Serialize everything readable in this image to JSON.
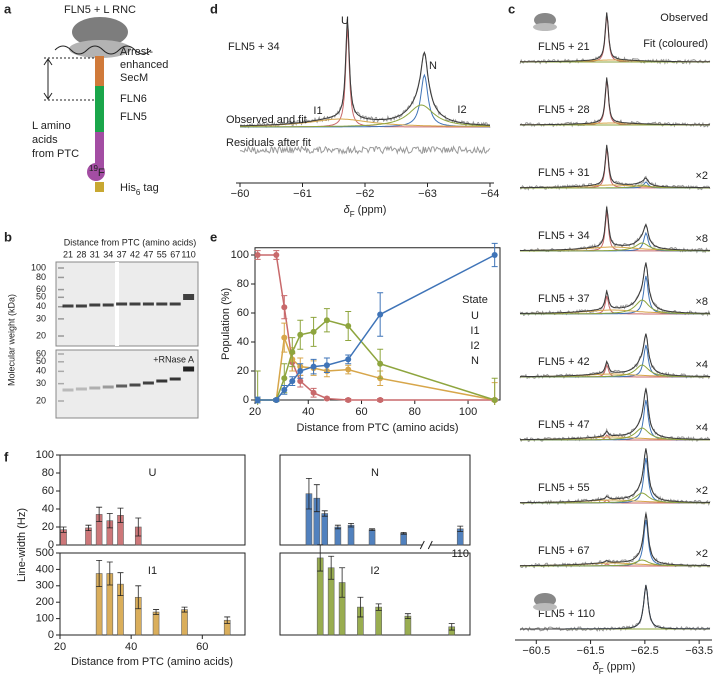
{
  "panel_labels": [
    "a",
    "b",
    "c",
    "d",
    "e",
    "f"
  ],
  "diagram": {
    "title": "FLN5 + L RNC",
    "secm": [
      "Arrest-",
      "enhanced",
      "SecM"
    ],
    "fln6": "FLN6",
    "fln5": "FLN5",
    "length": [
      "L amino",
      "acids",
      "from PTC"
    ],
    "label_19f": [
      "19",
      "F"
    ],
    "his_tag": [
      "His",
      "6",
      " tag"
    ]
  },
  "gel": {
    "title": "Distance from PTC (amino acids)",
    "lanes": [
      21,
      28,
      31,
      34,
      37,
      42,
      47,
      55,
      67,
      110
    ],
    "y_label": "Molecular weight (kDa)",
    "upper_markers": [
      100,
      80,
      60,
      50,
      40,
      30,
      20
    ],
    "lower_markers": [
      60,
      50,
      40,
      30,
      20
    ],
    "lower_label": "+RNase A"
  },
  "spectra": {
    "observed": "Observed",
    "fit": "Fit (coloured)",
    "rows": [
      {
        "label": "FLN5 + 21"
      },
      {
        "label": "FLN5 + 28"
      },
      {
        "label": "FLN5 + 31",
        "scale": "×2"
      },
      {
        "label": "FLN5 + 34",
        "scale": "×8"
      },
      {
        "label": "FLN5 + 37",
        "scale": "×8"
      },
      {
        "label": "FLN5 + 42",
        "scale": "×4"
      },
      {
        "label": "FLN5 + 47",
        "scale": "×4"
      },
      {
        "label": "FLN5 + 55",
        "scale": "×2"
      },
      {
        "label": "FLN5 + 67",
        "scale": "×2"
      },
      {
        "label": "FLN5 + 110"
      }
    ],
    "xlim": [
      -60.2,
      -63.7
    ],
    "xticks": [
      {
        "value": -60.5,
        "label": "−60.5"
      },
      {
        "value": -61.5,
        "label": "−61.5"
      },
      {
        "value": -62.5,
        "label": "−62.5"
      },
      {
        "value": -63.5,
        "label": "−63.5"
      }
    ],
    "x_label": {
      "symbol": "δ",
      "sub": "F",
      "unit": " (ppm)"
    }
  },
  "panel_d": {
    "label": "FLN5 + 34",
    "peaks": {
      "U": "U",
      "N": "N",
      "I1": "I1",
      "I2": "I2"
    },
    "observed": "Observed and fit",
    "residuals": "Residuals after fit",
    "xlim": [
      -60,
      -64
    ],
    "xticks": [
      {
        "value": -60,
        "label": "−60"
      },
      {
        "value": -61,
        "label": "−61"
      },
      {
        "value": -62,
        "label": "−62"
      },
      {
        "value": -63,
        "label": "−63"
      },
      {
        "value": -64,
        "label": "−64"
      }
    ],
    "x_label": {
      "symbol": "δ",
      "sub": "F",
      "unit": " (ppm)"
    }
  },
  "panel_f": {
    "y_label": "Line-width (Hz)",
    "x_label": "Distance from PTC (amino acids)"
  },
  "chart_data": [
    {
      "type": "line",
      "x_label": "Distance from PTC (amino acids)",
      "y_label": "Population (%)",
      "legend_title": "State",
      "legend": "right",
      "x": [
        21,
        28,
        31,
        34,
        37,
        42,
        47,
        55,
        67,
        110
      ],
      "series": [
        {
          "name": "U",
          "color": "#c8696b",
          "values": [
            100,
            100,
            64,
            26,
            13,
            5,
            1,
            0,
            0,
            0
          ],
          "errors": [
            3,
            3,
            8,
            6,
            4,
            3,
            1,
            1,
            1,
            1
          ]
        },
        {
          "name": "I1",
          "color": "#d7a64a",
          "values": [
            0,
            0,
            43,
            28,
            23,
            22,
            20,
            21,
            15,
            0
          ],
          "errors": [
            1,
            1,
            10,
            8,
            6,
            5,
            4,
            3,
            5,
            12
          ]
        },
        {
          "name": "I2",
          "color": "#8ea53e",
          "values": [
            0,
            0,
            15,
            33,
            45,
            47,
            55,
            51,
            25,
            0
          ],
          "errors": [
            20,
            1,
            10,
            10,
            10,
            10,
            8,
            10,
            10,
            15
          ]
        },
        {
          "name": "N",
          "color": "#3f74b8",
          "values": [
            0,
            0,
            7,
            13,
            20,
            23,
            24,
            28,
            59,
            100
          ],
          "errors": [
            2,
            1,
            3,
            3,
            5,
            5,
            5,
            3,
            15,
            8
          ]
        }
      ],
      "xlim": [
        20,
        112
      ],
      "ylim": [
        0,
        105
      ],
      "xticks": [
        20,
        40,
        60,
        80,
        100
      ],
      "yticks": [
        0,
        20,
        40,
        60,
        80,
        100
      ]
    },
    {
      "type": "bar",
      "title": "U",
      "color": "#c8696b",
      "x": [
        21,
        28,
        31,
        34,
        37,
        42
      ],
      "values": [
        17,
        19,
        34,
        27,
        33,
        20
      ],
      "errors": [
        3,
        3,
        8,
        8,
        8,
        10
      ],
      "xlim": [
        20,
        72
      ],
      "ylim": [
        0,
        100
      ],
      "yticks": [
        0,
        20,
        40,
        60,
        80,
        100
      ]
    },
    {
      "type": "bar",
      "title": "N",
      "color": "#3f74b8",
      "x": [
        31,
        34,
        37,
        42,
        47,
        55,
        67,
        110
      ],
      "values": [
        57,
        52,
        35,
        20,
        22,
        17,
        13,
        18
      ],
      "errors": [
        17,
        15,
        3,
        2,
        2,
        1,
        1,
        3
      ],
      "xlim": [
        20,
        112
      ],
      "axis_break": [
        72,
        105
      ],
      "ylim": [
        0,
        100
      ]
    },
    {
      "type": "bar",
      "title": "I1",
      "color": "#d7a64a",
      "x": [
        31,
        34,
        37,
        42,
        47,
        55,
        67
      ],
      "values": [
        375,
        375,
        310,
        230,
        140,
        155,
        90
      ],
      "errors": [
        80,
        70,
        70,
        70,
        15,
        15,
        20
      ],
      "xlim": [
        20,
        72
      ],
      "ylim": [
        0,
        500
      ],
      "xticks": [
        20,
        40,
        60
      ],
      "yticks": [
        0,
        100,
        200,
        300,
        400,
        500
      ]
    },
    {
      "type": "bar",
      "title": "I2",
      "color": "#8ea53e",
      "x": [
        31,
        34,
        37,
        42,
        47,
        55,
        67
      ],
      "values": [
        470,
        410,
        320,
        170,
        170,
        115,
        50
      ],
      "errors": [
        80,
        70,
        90,
        60,
        20,
        15,
        20
      ],
      "xlim": [
        20,
        72
      ],
      "ylim": [
        0,
        500
      ]
    }
  ]
}
